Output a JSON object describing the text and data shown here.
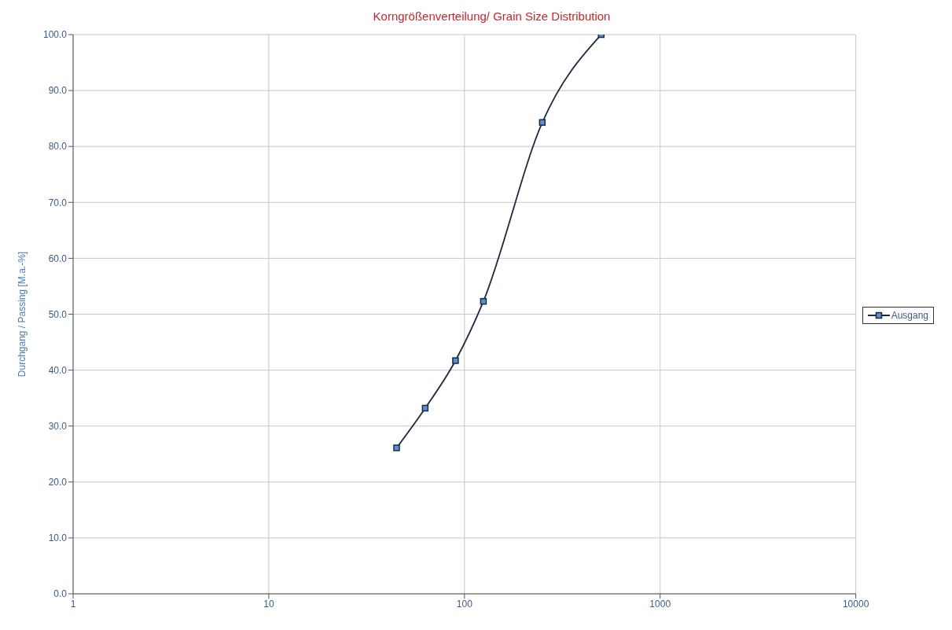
{
  "chart_data": {
    "type": "line",
    "title": "Korngrößenverteilung/  Grain Size Distribution",
    "ylabel": "Durchgang / Passing [M.a.-%]",
    "log": "x",
    "xlim": [
      1,
      10000
    ],
    "xticks": [
      1,
      10,
      100,
      1000,
      10000
    ],
    "ylim": [
      0,
      100
    ],
    "yticks": [
      {
        "value": 0,
        "label": "0.0"
      },
      {
        "value": 10,
        "label": "10.0"
      },
      {
        "value": 20,
        "label": "20.0"
      },
      {
        "value": 30,
        "label": "30.0"
      },
      {
        "value": 40,
        "label": "40.0"
      },
      {
        "value": 50,
        "label": "50.0"
      },
      {
        "value": 60,
        "label": "60.0"
      },
      {
        "value": 70,
        "label": "70.0"
      },
      {
        "value": 80,
        "label": "80.0"
      },
      {
        "value": 90,
        "label": "90.0"
      },
      {
        "value": 100,
        "label": "100.0"
      }
    ],
    "grid": true,
    "legend": "right",
    "marker": "square",
    "line_style": "solid",
    "series": [
      {
        "name": "Ausgang",
        "color": "#1c2a3e",
        "x": [
          45,
          63,
          90,
          125,
          250,
          500
        ],
        "values": [
          26.1,
          33.2,
          41.7,
          52.3,
          84.3,
          100
        ]
      }
    ]
  }
}
